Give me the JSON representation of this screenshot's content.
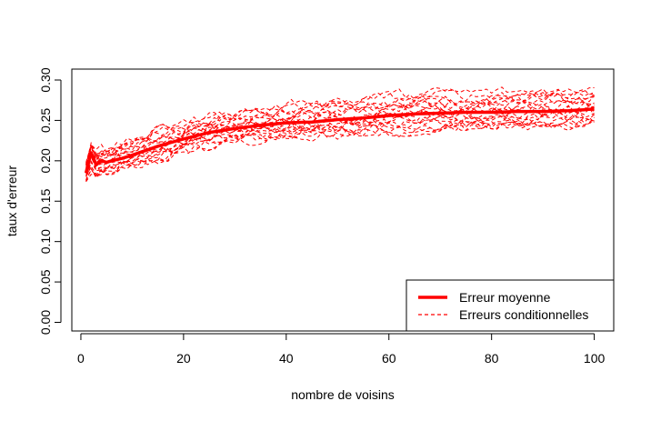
{
  "chart_data": {
    "type": "line",
    "title": "",
    "xlabel": "nombre de voisins",
    "ylabel": "taux d'erreur",
    "xlim": [
      1,
      100
    ],
    "ylim": [
      0,
      0.3
    ],
    "x_ticks": [
      0,
      20,
      40,
      60,
      80,
      100
    ],
    "x_tick_labels": [
      "0",
      "20",
      "40",
      "60",
      "80",
      "100"
    ],
    "y_ticks": [
      0,
      0.05,
      0.1,
      0.15,
      0.2,
      0.25,
      0.3
    ],
    "y_tick_labels": [
      "0.00",
      "0.05",
      "0.10",
      "0.15",
      "0.20",
      "0.25",
      "0.30"
    ],
    "grid": false,
    "legend_position": "bottom-right",
    "series_color": "#ff0000",
    "series": [
      {
        "name": "Erreur moyenne",
        "style": "solid-thick",
        "x": [
          1,
          2,
          3,
          4,
          5,
          6,
          8,
          10,
          15,
          20,
          25,
          30,
          35,
          40,
          45,
          50,
          55,
          60,
          65,
          70,
          75,
          80,
          85,
          90,
          95,
          100
        ],
        "values": [
          0.185,
          0.21,
          0.195,
          0.2,
          0.198,
          0.2,
          0.203,
          0.207,
          0.218,
          0.227,
          0.235,
          0.24,
          0.244,
          0.247,
          0.248,
          0.251,
          0.253,
          0.256,
          0.258,
          0.259,
          0.26,
          0.26,
          0.261,
          0.261,
          0.262,
          0.264
        ]
      },
      {
        "name": "Erreurs conditionnelles",
        "style": "dashed",
        "count": 20,
        "x": [
          1,
          2,
          3,
          4,
          5,
          6,
          8,
          10,
          15,
          20,
          25,
          30,
          35,
          40,
          45,
          50,
          55,
          60,
          65,
          70,
          75,
          80,
          85,
          90,
          95,
          100
        ],
        "band_low": [
          0.17,
          0.18,
          0.178,
          0.18,
          0.182,
          0.184,
          0.186,
          0.188,
          0.198,
          0.207,
          0.213,
          0.218,
          0.222,
          0.225,
          0.226,
          0.228,
          0.23,
          0.233,
          0.235,
          0.236,
          0.237,
          0.238,
          0.238,
          0.239,
          0.24,
          0.241
        ],
        "band_high": [
          0.2,
          0.225,
          0.215,
          0.218,
          0.216,
          0.218,
          0.222,
          0.228,
          0.24,
          0.25,
          0.258,
          0.263,
          0.268,
          0.272,
          0.275,
          0.278,
          0.281,
          0.284,
          0.286,
          0.287,
          0.288,
          0.289,
          0.289,
          0.29,
          0.29,
          0.291
        ]
      }
    ]
  }
}
